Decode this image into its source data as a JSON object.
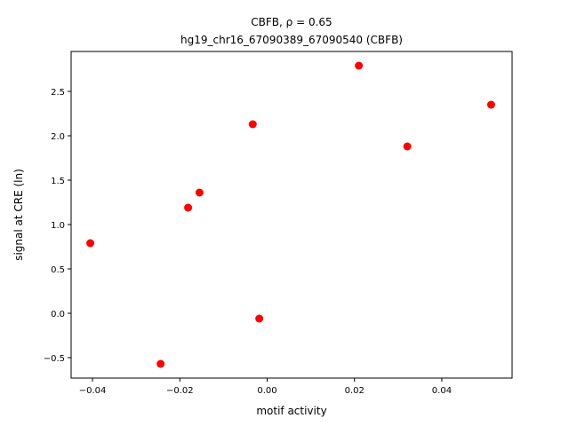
{
  "chart_data": {
    "type": "scatter",
    "title": "CBFB, ρ = 0.65",
    "subtitle": "hg19_chr16_67090389_67090540 (CBFB)",
    "xlabel": "motif activity",
    "ylabel": "signal at CRE (ln)",
    "color": "#ff0000",
    "x": [
      -0.0405,
      -0.0244,
      -0.0181,
      -0.0155,
      -0.0033,
      -0.0018,
      0.021,
      0.0321,
      0.0513
    ],
    "values": [
      0.79,
      -0.57,
      1.19,
      1.36,
      2.13,
      -0.06,
      2.79,
      1.88,
      2.35
    ],
    "xlim": [
      -0.0449,
      0.0561
    ],
    "ylim": [
      -0.73,
      2.95
    ],
    "xticks": [
      {
        "value": -0.04,
        "label": "−0.04"
      },
      {
        "value": -0.02,
        "label": "−0.02"
      },
      {
        "value": 0,
        "label": "0.00"
      },
      {
        "value": 0.02,
        "label": "0.02"
      },
      {
        "value": 0.04,
        "label": "0.04"
      }
    ],
    "yticks": [
      {
        "value": -0.5,
        "label": "−0.5"
      },
      {
        "value": 0,
        "label": "0.0"
      },
      0.5,
      {
        "value": 1,
        "label": "1.0"
      },
      1.5,
      {
        "value": 2,
        "label": "2.0"
      },
      2.5
    ]
  }
}
